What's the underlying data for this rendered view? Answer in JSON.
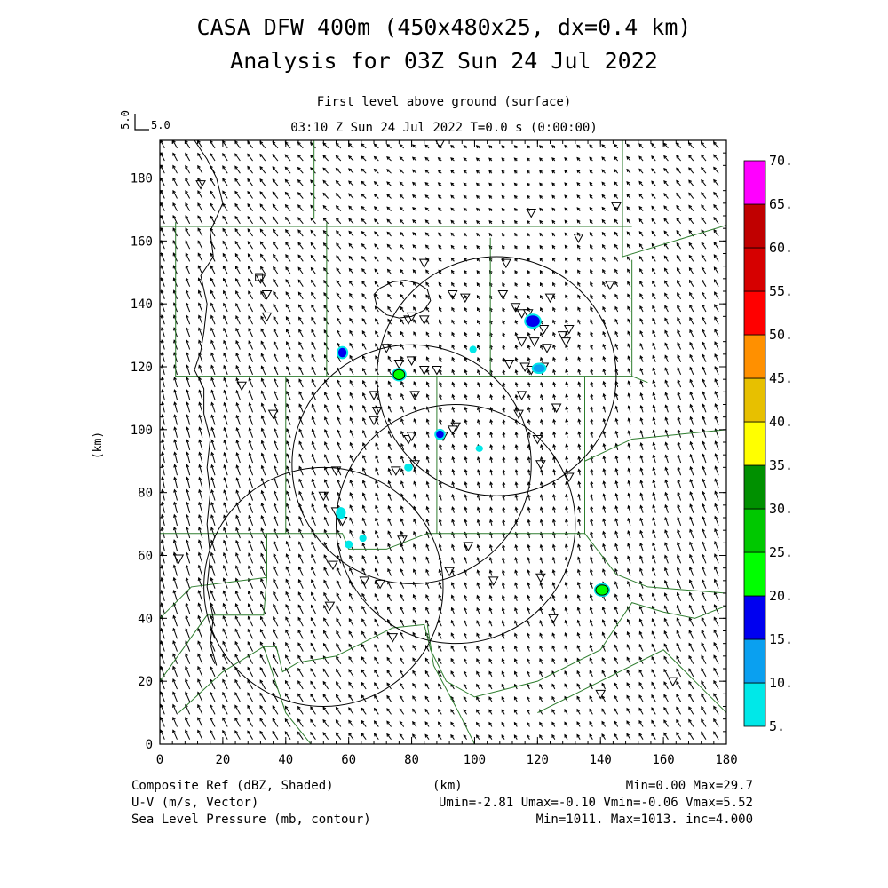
{
  "header": {
    "title_line1": "CASA DFW 400m (450x480x25, dx=0.4 km)",
    "title_line2": "Analysis for 03Z Sun 24 Jul 2022",
    "level_label": "First level above ground (surface)",
    "time_label": "03:10 Z Sun 24 Jul 2022    T=0.0 s (0:00:00)",
    "vector_ref_label": "5.0",
    "vector_ref_axis_label": "5.0"
  },
  "footer": {
    "left_line1": "Composite Ref (dBZ, Shaded)",
    "left_line2": "U-V (m/s, Vector)",
    "left_line3": "Sea Level Pressure (mb, contour)",
    "center_line1": "(km)",
    "right_line1": "Min=0.00 Max=29.7",
    "right_line2": "Umin=-2.81 Umax=-0.10 Vmin=-0.06 Vmax=5.52",
    "right_line3": "Min=1011. Max=1013. inc=4.000"
  },
  "chart_data": {
    "type": "heatmap",
    "xlabel": "",
    "ylabel": "(km)",
    "xlim": [
      0,
      180
    ],
    "ylim": [
      0,
      192
    ],
    "x_ticks": [
      0,
      20,
      40,
      60,
      80,
      100,
      120,
      140,
      160,
      180
    ],
    "y_ticks": [
      0,
      20,
      40,
      60,
      80,
      100,
      120,
      140,
      160,
      180
    ],
    "colorbar": {
      "levels": [
        "5.",
        "10.",
        "15.",
        "20.",
        "25.",
        "30.",
        "35.",
        "40.",
        "45.",
        "50.",
        "55.",
        "60.",
        "65.",
        "70."
      ],
      "colors": [
        "#00e8e8",
        "#0aa0f0",
        "#0000f0",
        "#00ff00",
        "#00c800",
        "#009000",
        "#ffff00",
        "#e7c000",
        "#ff9000",
        "#ff0000",
        "#d60000",
        "#c00000",
        "#ff00ff"
      ]
    },
    "reflectivity_cells": [
      {
        "x": 118.5,
        "y": 134.5,
        "rx": 2.2,
        "ry": 1.8,
        "dbz": 17
      },
      {
        "x": 76,
        "y": 117.5,
        "rx": 1.8,
        "ry": 1.6,
        "dbz": 22
      },
      {
        "x": 58,
        "y": 124.5,
        "rx": 1.3,
        "ry": 1.5,
        "dbz": 16
      },
      {
        "x": 120.5,
        "y": 119.5,
        "rx": 1.8,
        "ry": 1.2,
        "dbz": 12
      },
      {
        "x": 89,
        "y": 98.5,
        "rx": 1.2,
        "ry": 1.2,
        "dbz": 16
      },
      {
        "x": 140.5,
        "y": 49,
        "rx": 2.0,
        "ry": 1.6,
        "dbz": 24
      },
      {
        "x": 57.5,
        "y": 73.5,
        "rx": 1.0,
        "ry": 1.3,
        "dbz": 8
      },
      {
        "x": 60,
        "y": 63.5,
        "rx": 0.7,
        "ry": 0.7,
        "dbz": 8
      },
      {
        "x": 64.5,
        "y": 65.5,
        "rx": 0.6,
        "ry": 0.6,
        "dbz": 7
      },
      {
        "x": 79,
        "y": 88,
        "rx": 0.8,
        "ry": 0.7,
        "dbz": 8
      },
      {
        "x": 99.5,
        "y": 125.5,
        "rx": 0.6,
        "ry": 0.6,
        "dbz": 7
      },
      {
        "x": 101.5,
        "y": 94,
        "rx": 0.6,
        "ry": 0.5,
        "dbz": 6
      }
    ],
    "radar_rings": [
      {
        "cx": 107,
        "cy": 117,
        "r": 38
      },
      {
        "cx": 80,
        "cy": 89,
        "r": 38
      },
      {
        "cx": 94,
        "cy": 70,
        "r": 38
      },
      {
        "cx": 52,
        "cy": 50,
        "r": 38
      }
    ],
    "pressure_contour": [
      [
        68,
        143
      ],
      [
        70,
        145
      ],
      [
        74,
        147
      ],
      [
        78,
        147.5
      ],
      [
        82,
        146.5
      ],
      [
        85,
        144.5
      ],
      [
        86,
        141
      ],
      [
        84,
        138
      ],
      [
        80,
        136
      ],
      [
        76,
        135.5
      ],
      [
        72,
        136.5
      ],
      [
        69,
        139
      ],
      [
        68,
        143
      ]
    ],
    "stations": [
      [
        13,
        178
      ],
      [
        32,
        148
      ],
      [
        34,
        143
      ],
      [
        34,
        136
      ],
      [
        26,
        114
      ],
      [
        36,
        105
      ],
      [
        89,
        191
      ],
      [
        84,
        153
      ],
      [
        110,
        153
      ],
      [
        118,
        169
      ],
      [
        145,
        171
      ],
      [
        133,
        161
      ],
      [
        143,
        146
      ],
      [
        97,
        142
      ],
      [
        109,
        143
      ],
      [
        113,
        139
      ],
      [
        115,
        137
      ],
      [
        117,
        137
      ],
      [
        124,
        142
      ],
      [
        119,
        133
      ],
      [
        122,
        132
      ],
      [
        115,
        128
      ],
      [
        119,
        128
      ],
      [
        123,
        126
      ],
      [
        128,
        130
      ],
      [
        129,
        128
      ],
      [
        130,
        132
      ],
      [
        111,
        121
      ],
      [
        116,
        120
      ],
      [
        115,
        111
      ],
      [
        118,
        119
      ],
      [
        122,
        120
      ],
      [
        126,
        107
      ],
      [
        114,
        105
      ],
      [
        120,
        97
      ],
      [
        121,
        89
      ],
      [
        130,
        85
      ],
      [
        79,
        135
      ],
      [
        80,
        136
      ],
      [
        84,
        135
      ],
      [
        93,
        143
      ],
      [
        80,
        122
      ],
      [
        76,
        121
      ],
      [
        84,
        119
      ],
      [
        88,
        119
      ],
      [
        72,
        126
      ],
      [
        68,
        111
      ],
      [
        69,
        106
      ],
      [
        68,
        103
      ],
      [
        81,
        111
      ],
      [
        79,
        97
      ],
      [
        80,
        98
      ],
      [
        90,
        98
      ],
      [
        94,
        101
      ],
      [
        93,
        100
      ],
      [
        81,
        89
      ],
      [
        75,
        87
      ],
      [
        56,
        87
      ],
      [
        52,
        79
      ],
      [
        56,
        74
      ],
      [
        58,
        71
      ],
      [
        55,
        57
      ],
      [
        70,
        51
      ],
      [
        65,
        52
      ],
      [
        77,
        65
      ],
      [
        98,
        63
      ],
      [
        92,
        55
      ],
      [
        106,
        52
      ],
      [
        121,
        53
      ],
      [
        125,
        40
      ],
      [
        74,
        34
      ],
      [
        54,
        44
      ],
      [
        6,
        59
      ],
      [
        140,
        16
      ],
      [
        163,
        20
      ]
    ],
    "marker_square": [
      31.5,
      148.5
    ],
    "boundaries": [
      [
        [
          0,
          164.6
        ],
        [
          150,
          164.6
        ]
      ],
      [
        [
          49,
          192
        ],
        [
          49,
          167
        ]
      ],
      [
        [
          147,
          192
        ],
        [
          147,
          155
        ],
        [
          180,
          165
        ]
      ],
      [
        [
          5,
          166
        ],
        [
          5,
          117
        ],
        [
          50,
          117
        ],
        [
          150,
          117
        ],
        [
          155,
          115
        ]
      ],
      [
        [
          53,
          166
        ],
        [
          53,
          117
        ]
      ],
      [
        [
          105,
          161
        ],
        [
          105,
          117
        ]
      ],
      [
        [
          150,
          154
        ],
        [
          150,
          117
        ]
      ],
      [
        [
          40,
          117
        ],
        [
          40,
          67
        ],
        [
          34,
          67
        ]
      ],
      [
        [
          88,
          117
        ],
        [
          88,
          67
        ]
      ],
      [
        [
          135,
          117
        ],
        [
          135,
          67
        ],
        [
          110,
          67
        ]
      ],
      [
        [
          0,
          67
        ],
        [
          34,
          67
        ],
        [
          34,
          53
        ],
        [
          33,
          41
        ],
        [
          15,
          41
        ],
        [
          0,
          20
        ]
      ],
      [
        [
          34,
          67
        ],
        [
          58,
          67
        ],
        [
          60,
          62
        ],
        [
          72,
          62
        ],
        [
          85,
          67
        ],
        [
          110,
          67
        ]
      ],
      [
        [
          135,
          90
        ],
        [
          150,
          97
        ],
        [
          180,
          100
        ]
      ],
      [
        [
          135,
          67
        ],
        [
          145,
          54
        ],
        [
          155,
          50
        ],
        [
          180,
          48
        ]
      ],
      [
        [
          0,
          40
        ],
        [
          10,
          50
        ],
        [
          34,
          53
        ]
      ],
      [
        [
          6,
          10
        ],
        [
          20,
          23
        ],
        [
          33,
          31
        ],
        [
          37,
          31
        ],
        [
          39,
          23
        ],
        [
          44,
          26
        ],
        [
          56,
          28
        ],
        [
          64,
          32
        ],
        [
          74,
          37
        ],
        [
          84,
          38
        ],
        [
          86,
          30
        ],
        [
          91,
          20
        ],
        [
          100,
          15
        ],
        [
          120,
          20
        ],
        [
          140,
          30
        ],
        [
          150,
          45
        ],
        [
          160,
          42
        ],
        [
          170,
          40
        ],
        [
          180,
          44
        ]
      ],
      [
        [
          33,
          31
        ],
        [
          40,
          10
        ],
        [
          48,
          0
        ]
      ],
      [
        [
          85,
          38
        ],
        [
          87,
          25
        ],
        [
          95,
          10
        ],
        [
          100,
          0
        ]
      ],
      [
        [
          120,
          10
        ],
        [
          140,
          20
        ],
        [
          160,
          30
        ],
        [
          170,
          20
        ],
        [
          180,
          10
        ]
      ]
    ],
    "county_curve": [
      [
        11,
        192
      ],
      [
        15,
        186
      ],
      [
        18,
        180
      ],
      [
        20,
        172
      ],
      [
        16,
        163
      ],
      [
        17,
        155
      ],
      [
        13,
        149
      ],
      [
        15,
        140
      ],
      [
        14,
        131
      ],
      [
        13,
        125
      ],
      [
        11,
        119
      ],
      [
        14,
        113
      ],
      [
        14,
        105
      ],
      [
        16,
        97
      ],
      [
        15,
        88
      ],
      [
        16,
        80
      ],
      [
        15,
        70
      ],
      [
        16,
        60
      ],
      [
        15,
        50
      ],
      [
        17,
        40
      ],
      [
        16,
        32
      ],
      [
        18,
        25
      ]
    ],
    "wind_field": {
      "u_range": [
        -2.81,
        -0.1
      ],
      "v_range": [
        -0.06,
        5.52
      ],
      "reference_vector_ms": 5.0
    }
  }
}
